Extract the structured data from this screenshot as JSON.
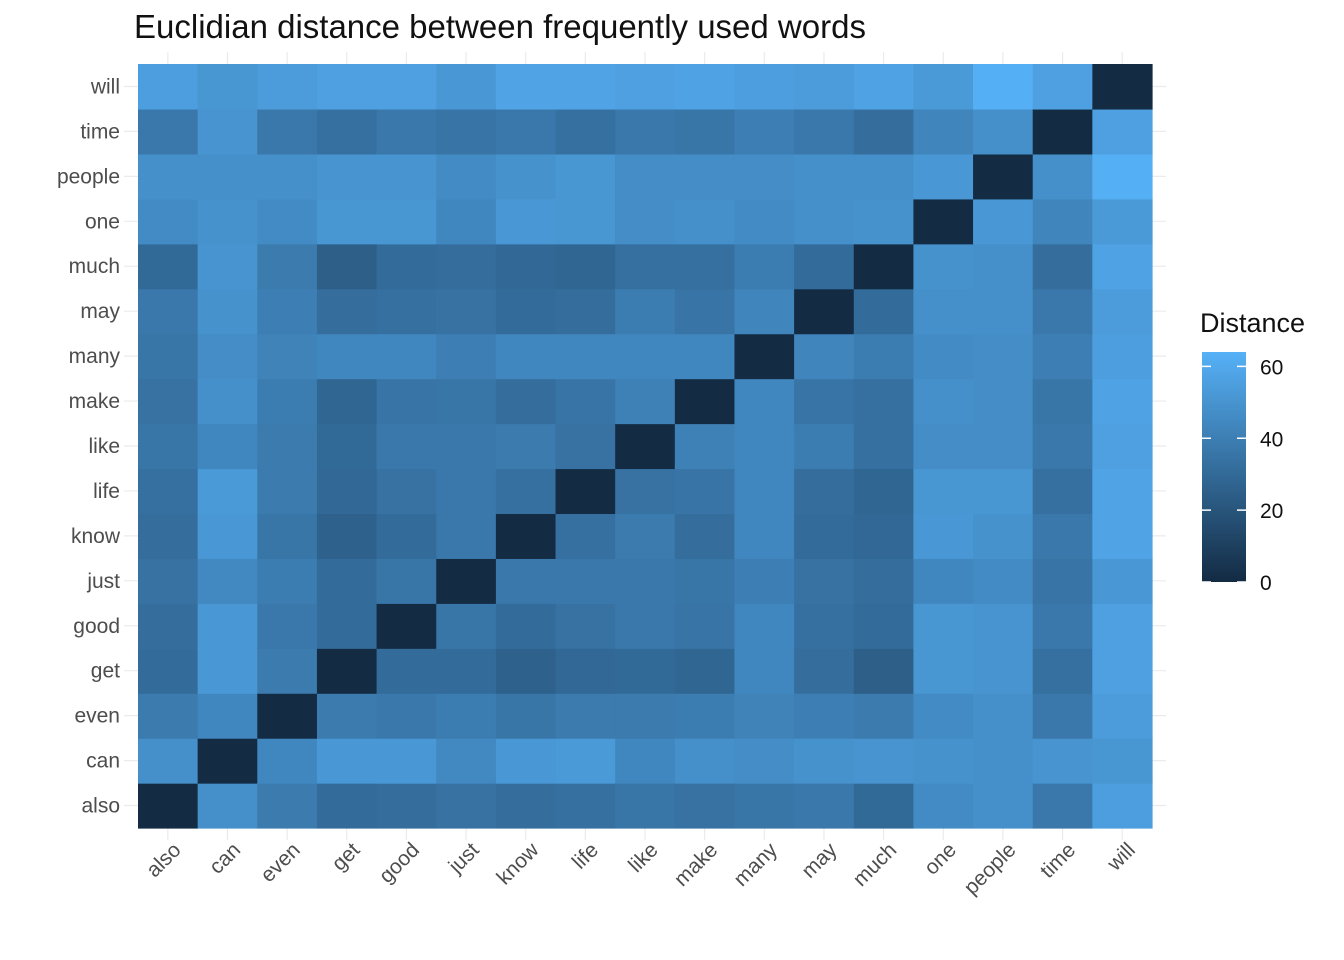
{
  "chart_data": {
    "type": "heatmap",
    "title": "Euclidian distance between frequently used words",
    "xlabel": "",
    "ylabel": "",
    "words": [
      "also",
      "can",
      "even",
      "get",
      "good",
      "just",
      "know",
      "life",
      "like",
      "make",
      "many",
      "may",
      "much",
      "one",
      "people",
      "time",
      "will"
    ],
    "legend": {
      "title": "Distance",
      "ticks": [
        0,
        20,
        40,
        60
      ],
      "range": [
        0,
        64
      ]
    },
    "colors": {
      "low": "#132B43",
      "high": "#56B1F7",
      "grid": "#ebebeb",
      "axis_text": "#4d4d4d"
    },
    "grid": true,
    "legend_position": "right",
    "values": [
      [
        0,
        48,
        38,
        31,
        32,
        34,
        32,
        33,
        36,
        34,
        36,
        37,
        30,
        46,
        48,
        37,
        55
      ],
      [
        48,
        0,
        44,
        52,
        52,
        45,
        52,
        53,
        44,
        48,
        47,
        49,
        50,
        49,
        48,
        50,
        51
      ],
      [
        38,
        44,
        0,
        38,
        37,
        39,
        36,
        38,
        38,
        39,
        42,
        40,
        38,
        46,
        48,
        37,
        54
      ],
      [
        31,
        52,
        38,
        0,
        31,
        31,
        26,
        29,
        30,
        28,
        44,
        32,
        25,
        51,
        50,
        33,
        56
      ],
      [
        32,
        52,
        37,
        31,
        0,
        36,
        31,
        34,
        37,
        35,
        44,
        33,
        31,
        51,
        50,
        37,
        56
      ],
      [
        34,
        45,
        39,
        31,
        36,
        0,
        37,
        37,
        37,
        36,
        40,
        34,
        32,
        44,
        46,
        35,
        52
      ],
      [
        32,
        52,
        36,
        26,
        31,
        37,
        0,
        33,
        38,
        32,
        44,
        31,
        29,
        52,
        49,
        37,
        58
      ],
      [
        33,
        53,
        38,
        29,
        34,
        37,
        33,
        0,
        34,
        35,
        44,
        32,
        28,
        51,
        51,
        33,
        58
      ],
      [
        36,
        44,
        38,
        30,
        37,
        37,
        38,
        34,
        0,
        41,
        44,
        39,
        33,
        47,
        47,
        37,
        56
      ],
      [
        34,
        48,
        39,
        28,
        35,
        36,
        32,
        35,
        41,
        0,
        44,
        35,
        33,
        48,
        47,
        36,
        57
      ],
      [
        36,
        47,
        42,
        44,
        44,
        40,
        44,
        44,
        44,
        44,
        0,
        43,
        39,
        46,
        47,
        40,
        55
      ],
      [
        37,
        49,
        40,
        32,
        33,
        34,
        31,
        32,
        39,
        35,
        43,
        0,
        31,
        48,
        48,
        37,
        54
      ],
      [
        30,
        50,
        38,
        25,
        31,
        32,
        29,
        28,
        33,
        33,
        39,
        31,
        0,
        49,
        48,
        32,
        57
      ],
      [
        46,
        49,
        46,
        51,
        51,
        44,
        52,
        51,
        47,
        48,
        46,
        48,
        49,
        0,
        52,
        43,
        53
      ],
      [
        48,
        48,
        48,
        50,
        50,
        46,
        49,
        51,
        47,
        47,
        47,
        48,
        48,
        52,
        0,
        48,
        63
      ],
      [
        37,
        50,
        37,
        33,
        37,
        35,
        37,
        33,
        37,
        36,
        40,
        37,
        32,
        43,
        48,
        0,
        56
      ],
      [
        55,
        51,
        54,
        56,
        56,
        52,
        58,
        58,
        56,
        57,
        55,
        54,
        57,
        53,
        63,
        56,
        0
      ]
    ]
  }
}
